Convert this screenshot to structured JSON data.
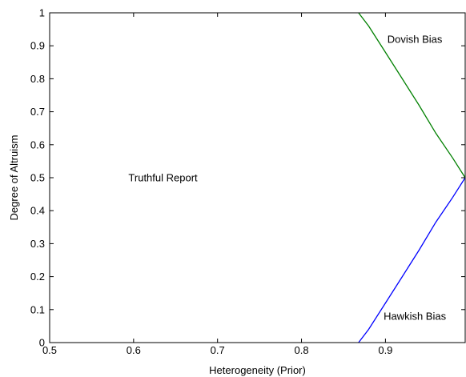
{
  "chart_data": {
    "type": "line",
    "title": "",
    "xlabel": "Heterogeneity (Prior)",
    "ylabel": "Degree of Altruism",
    "xlim": [
      0.5,
      0.995
    ],
    "ylim": [
      0,
      1
    ],
    "xticks": [
      0.5,
      0.6,
      0.7,
      0.8,
      0.9
    ],
    "xtick_labels": [
      "0.5",
      "0.6",
      "0.7",
      "0.8",
      "0.9"
    ],
    "yticks": [
      0,
      0.1,
      0.2,
      0.3,
      0.4,
      0.5,
      0.6,
      0.7,
      0.8,
      0.9,
      1
    ],
    "ytick_labels": [
      "0",
      "0.1",
      "0.2",
      "0.3",
      "0.4",
      "0.5",
      "0.6",
      "0.7",
      "0.8",
      "0.9",
      "1"
    ],
    "grid": false,
    "legend": "none",
    "series": [
      {
        "color": "#008000",
        "x": [
          0.868,
          0.88,
          0.9,
          0.92,
          0.94,
          0.96,
          0.98,
          0.995
        ],
        "y": [
          1.0,
          0.96,
          0.88,
          0.8,
          0.72,
          0.635,
          0.56,
          0.5
        ]
      },
      {
        "color": "#0000ff",
        "x": [
          0.868,
          0.88,
          0.9,
          0.92,
          0.94,
          0.96,
          0.98,
          0.995
        ],
        "y": [
          0.0,
          0.04,
          0.12,
          0.2,
          0.28,
          0.365,
          0.44,
          0.5
        ]
      }
    ],
    "annotations": [
      {
        "text": "Truthful Report",
        "x": 0.635,
        "y": 0.5
      },
      {
        "text": "Dovish Bias",
        "x": 0.935,
        "y": 0.92
      },
      {
        "text": "Hawkish Bias",
        "x": 0.935,
        "y": 0.08
      }
    ]
  }
}
